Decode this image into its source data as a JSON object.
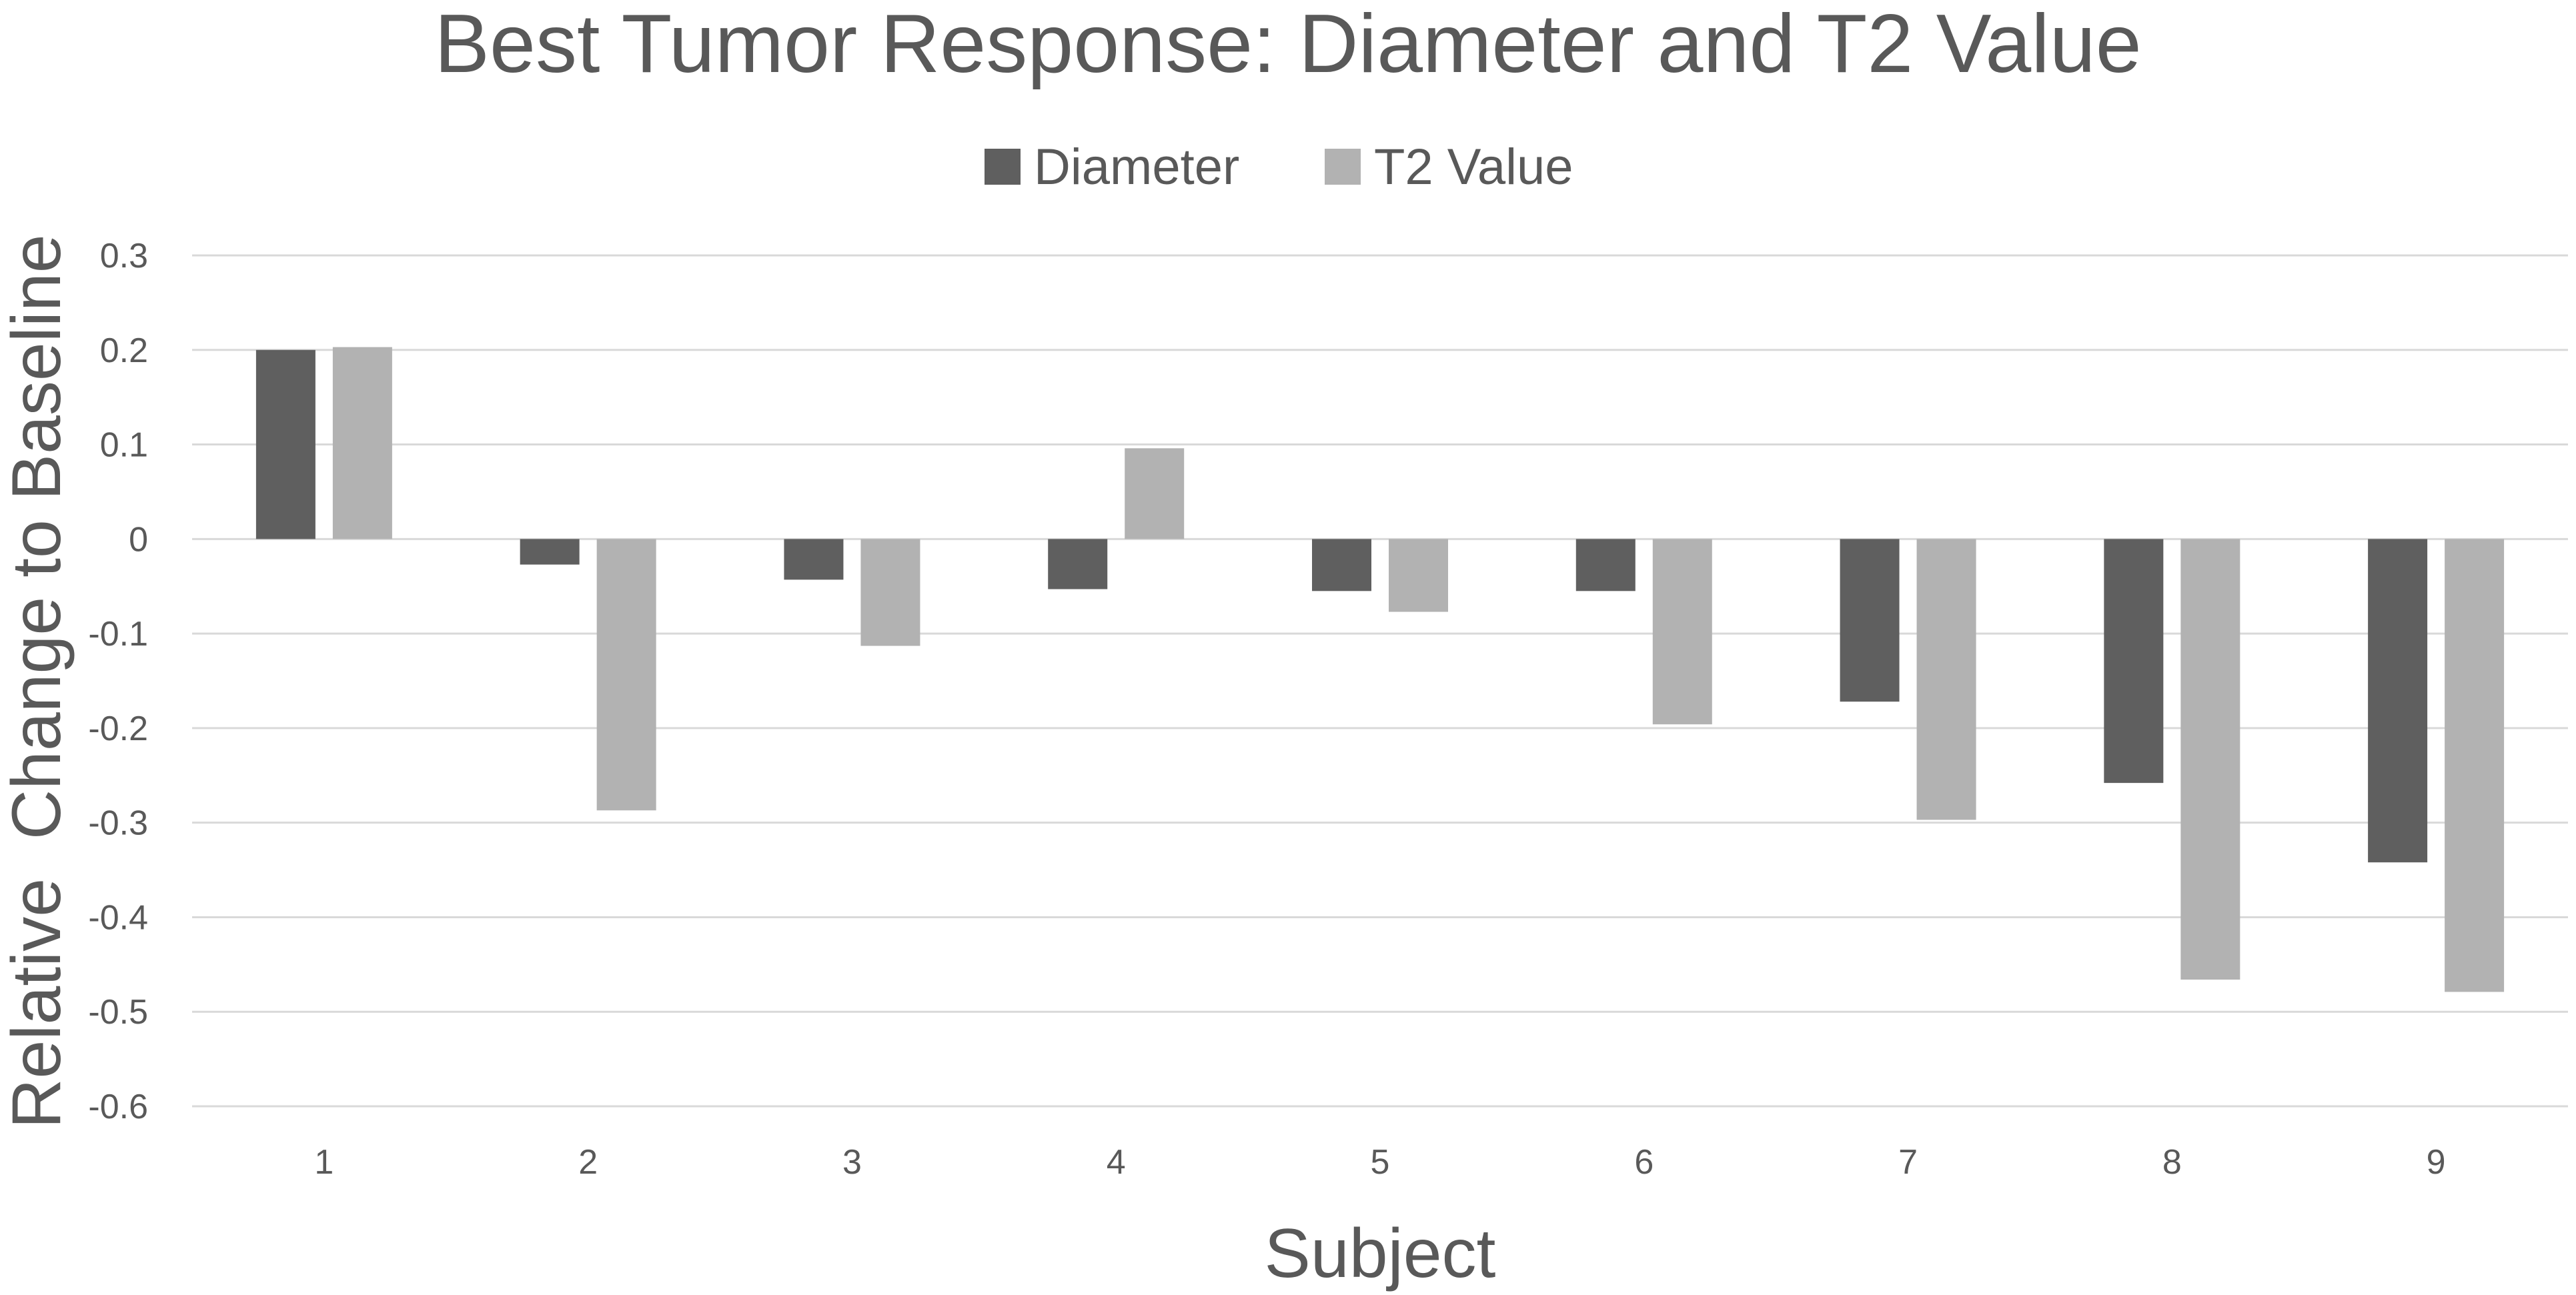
{
  "chart_data": {
    "type": "bar",
    "title": "Best Tumor Response: Diameter and T2 Value",
    "xlabel": "Subject",
    "ylabel": "Relative  Change to Baseline",
    "categories": [
      "1",
      "2",
      "3",
      "4",
      "5",
      "6",
      "7",
      "8",
      "9"
    ],
    "series": [
      {
        "name": "Diameter",
        "color": "#5f5f5f",
        "values": [
          0.2,
          -0.027,
          -0.043,
          -0.053,
          -0.055,
          -0.055,
          -0.172,
          -0.258,
          -0.342
        ]
      },
      {
        "name": "T2 Value",
        "color": "#b2b2b2",
        "values": [
          0.203,
          -0.287,
          -0.113,
          0.096,
          -0.077,
          -0.196,
          -0.297,
          -0.466,
          -0.479
        ]
      }
    ],
    "ylim": [
      -0.6,
      0.3
    ],
    "yticks": [
      0.3,
      0.2,
      0.1,
      0,
      -0.1,
      -0.2,
      -0.3,
      -0.4,
      -0.5,
      -0.6
    ],
    "ytick_labels": [
      "0.3",
      "0.2",
      "0.1",
      "0",
      "-0.1",
      "-0.2",
      "-0.3",
      "-0.4",
      "-0.5",
      "-0.6"
    ],
    "grid": true,
    "legend_position": "top-center"
  }
}
